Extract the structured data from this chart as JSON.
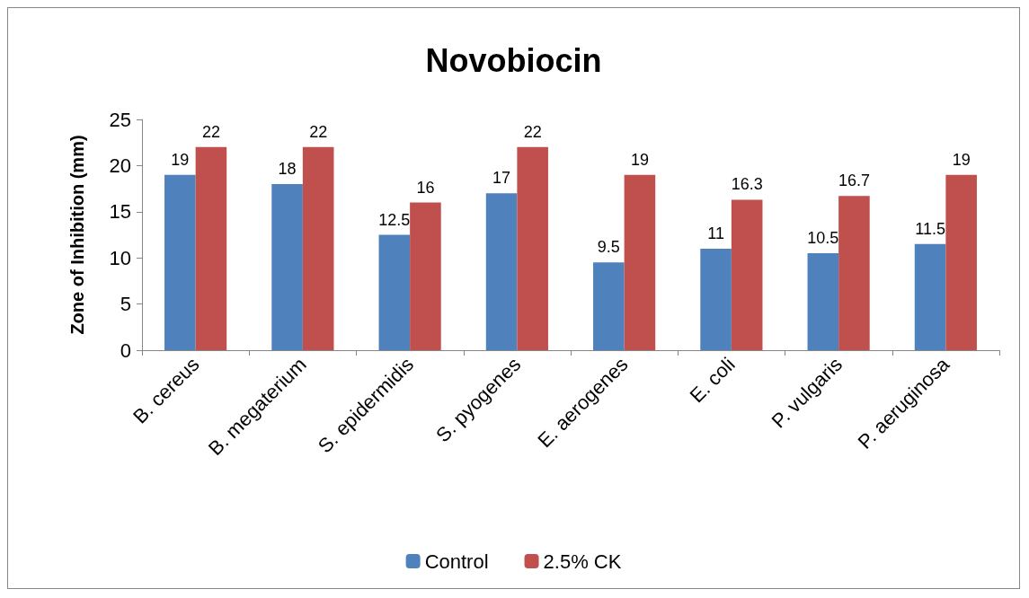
{
  "chart_data": {
    "type": "bar",
    "title": "Novobiocin",
    "ylabel": "Zone of Inhibition (mm)",
    "categories": [
      "B. cereus",
      "B. megaterium",
      "S. epidermidis",
      "S. pyogenes",
      "E. aerogenes",
      "E. coli",
      "P. vulgaris",
      "P. aeruginosa"
    ],
    "series": [
      {
        "name": "Control",
        "color": "#4f81bd",
        "values": [
          19,
          18,
          12.5,
          17,
          9.5,
          11,
          10.5,
          11.5
        ]
      },
      {
        "name": "2.5% CK",
        "color": "#c0504d",
        "values": [
          22,
          22,
          16,
          22,
          19,
          16.3,
          16.7,
          19
        ]
      }
    ],
    "ylim": [
      0,
      25
    ],
    "yticks": [
      0,
      5,
      10,
      15,
      20,
      25
    ],
    "grid": false,
    "legend": "bottom",
    "data_labels": true
  }
}
